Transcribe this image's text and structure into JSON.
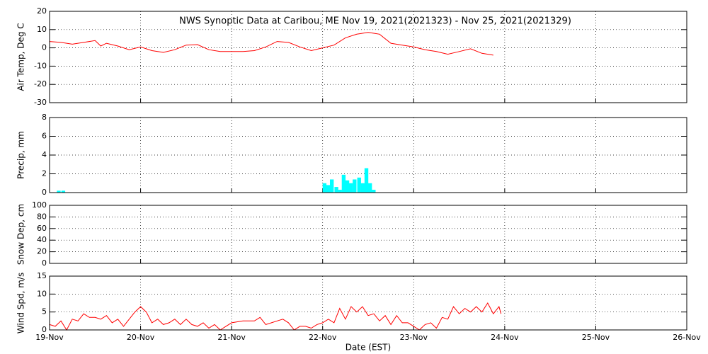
{
  "chart_data": [
    {
      "type": "line",
      "title": "NWS Synoptic Data at Caribou, ME   Nov 19, 2021(2021323) - Nov 25, 2021(2021329)",
      "ylabel": "Air Temp, Deg C",
      "xlim": [
        0,
        7
      ],
      "xticks": [
        0,
        1,
        2,
        3,
        4,
        5,
        6,
        7
      ],
      "ylim": [
        -30,
        20
      ],
      "yticks": [
        20,
        10,
        0,
        -10,
        -20,
        -30
      ],
      "grid": true,
      "series": [
        {
          "color": "#ff0000",
          "x": [
            0,
            0.125,
            0.25,
            0.375,
            0.5,
            0.5625,
            0.625,
            0.75,
            0.875,
            1,
            1.125,
            1.25,
            1.375,
            1.5,
            1.625,
            1.75,
            1.875,
            2,
            2.125,
            2.25,
            2.375,
            2.5,
            2.625,
            2.75,
            2.875,
            3,
            3.125,
            3.25,
            3.375,
            3.5,
            3.5625,
            3.625,
            3.75,
            3.875,
            4,
            4.125,
            4.25,
            4.375,
            4.5,
            4.625,
            4.75,
            4.875
          ],
          "values": [
            3.5,
            3,
            2,
            3,
            4,
            1,
            2.5,
            1,
            -1,
            0.5,
            -1.5,
            -2.5,
            -1,
            1.5,
            1.8,
            -1,
            -2,
            -2,
            -2,
            -1.5,
            0.5,
            3.5,
            3,
            0.5,
            -1.5,
            0,
            1.5,
            5.5,
            7.5,
            8.5,
            8,
            7.5,
            2.5,
            1.5,
            0.5,
            -1,
            -2,
            -3.5,
            -2,
            -0.5,
            -3,
            -4
          ]
        }
      ]
    },
    {
      "type": "bar",
      "ylabel": "Precip, mm",
      "xlim": [
        0,
        7
      ],
      "xticks": [
        0,
        1,
        2,
        3,
        4,
        5,
        6,
        7
      ],
      "ylim": [
        0,
        8
      ],
      "yticks": [
        0,
        2,
        4,
        6,
        8
      ],
      "grid": true,
      "series": [
        {
          "color": "#00ffff",
          "x": [
            0.08,
            0.13,
            3.0,
            3.04,
            3.08,
            3.13,
            3.17,
            3.21,
            3.25,
            3.29,
            3.33,
            3.38,
            3.42,
            3.46,
            3.5,
            3.54
          ],
          "values": [
            0.2,
            0.2,
            1.0,
            0.8,
            1.4,
            0.6,
            0.3,
            1.9,
            1.3,
            1.0,
            1.4,
            1.6,
            1.0,
            2.6,
            1.0,
            0.3
          ]
        }
      ]
    },
    {
      "type": "line",
      "ylabel": "Snow Dep, cm",
      "xlim": [
        0,
        7
      ],
      "xticks": [
        0,
        1,
        2,
        3,
        4,
        5,
        6,
        7
      ],
      "ylim": [
        0,
        100
      ],
      "yticks": [
        0,
        20,
        40,
        60,
        80,
        100
      ],
      "grid": true,
      "series": [
        {
          "color": "#ff0000",
          "x": [],
          "values": []
        }
      ]
    },
    {
      "type": "line",
      "ylabel": "Wind Spd, m/s",
      "xlabel": "Date (EST)",
      "xlim": [
        0,
        7
      ],
      "xticks": [
        {
          "value": 0,
          "label": "19-Nov"
        },
        {
          "value": 1,
          "label": "20-Nov"
        },
        {
          "value": 2,
          "label": "21-Nov"
        },
        {
          "value": 3,
          "label": "22-Nov"
        },
        {
          "value": 4,
          "label": "23-Nov"
        },
        {
          "value": 5,
          "label": "24-Nov"
        },
        {
          "value": 6,
          "label": "25-Nov"
        },
        {
          "value": 7,
          "label": "26-Nov"
        }
      ],
      "ylim": [
        0,
        15
      ],
      "yticks": [
        0,
        5,
        10,
        15
      ],
      "grid": true,
      "series": [
        {
          "color": "#ff0000",
          "x": [
            0,
            0.0625,
            0.125,
            0.1875,
            0.25,
            0.3125,
            0.375,
            0.4375,
            0.5,
            0.5625,
            0.625,
            0.6875,
            0.75,
            0.8125,
            0.875,
            0.9375,
            1,
            1.0625,
            1.125,
            1.1875,
            1.25,
            1.3125,
            1.375,
            1.4375,
            1.5,
            1.5625,
            1.625,
            1.6875,
            1.75,
            1.8125,
            1.875,
            1.9375,
            2,
            2.125,
            2.25,
            2.3125,
            2.375,
            2.4375,
            2.5,
            2.5625,
            2.625,
            2.6875,
            2.75,
            2.8125,
            2.875,
            2.9375,
            3,
            3.0625,
            3.125,
            3.1875,
            3.25,
            3.3125,
            3.375,
            3.4375,
            3.5,
            3.5625,
            3.625,
            3.6875,
            3.75,
            3.8125,
            3.875,
            3.9375,
            4,
            4.0625,
            4.125,
            4.1875,
            4.25,
            4.3125,
            4.375,
            4.4375,
            4.5,
            4.5625,
            4.625,
            4.6875,
            4.75,
            4.8125,
            4.875,
            4.9375,
            4.96
          ],
          "values": [
            1.5,
            1,
            2.5,
            0,
            3,
            2.5,
            4.5,
            3.5,
            3.5,
            3,
            4,
            2,
            3,
            1,
            3,
            5,
            6.5,
            5,
            2,
            3,
            1.5,
            2,
            3,
            1.5,
            3,
            1.5,
            1,
            2,
            0.5,
            1.5,
            0,
            1,
            2,
            2.5,
            2.5,
            3.5,
            1.5,
            2,
            2.5,
            3,
            2,
            0,
            1,
            1,
            0.5,
            1.5,
            2,
            3,
            2,
            6,
            3,
            6.5,
            5,
            6.5,
            4,
            4.5,
            2.5,
            4,
            1.5,
            4,
            2,
            2,
            1,
            0,
            1.5,
            2,
            0.5,
            3.5,
            3,
            6.5,
            4.5,
            6,
            5,
            6.5,
            5,
            7.5,
            4.5,
            6.5,
            4.5
          ]
        }
      ]
    }
  ]
}
